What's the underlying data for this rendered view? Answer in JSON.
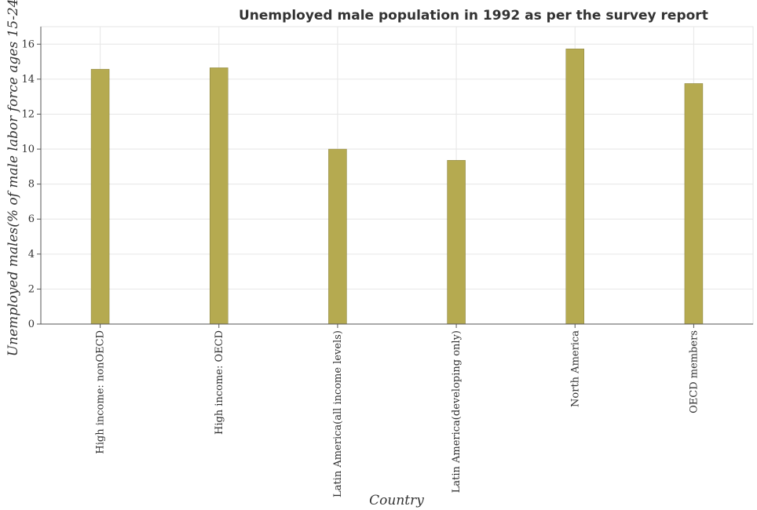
{
  "chart_data": {
    "type": "bar",
    "title": "Unemployed male population in 1992 as per the survey report",
    "xlabel": "Country",
    "ylabel": "Unemployed males(% of male labor force ages 15-24)",
    "categories": [
      "High income: nonOECD",
      "High income: OECD",
      "Latin America(all income levels)",
      "Latin America(developing only)",
      "North America",
      "OECD members"
    ],
    "values": [
      14.57,
      14.65,
      10.0,
      9.36,
      15.73,
      13.75
    ],
    "ylim": [
      0,
      17
    ],
    "yticks": [
      0,
      2,
      4,
      6,
      8,
      10,
      12,
      14,
      16
    ],
    "grid": true,
    "bar_color": "#b5aa50"
  }
}
